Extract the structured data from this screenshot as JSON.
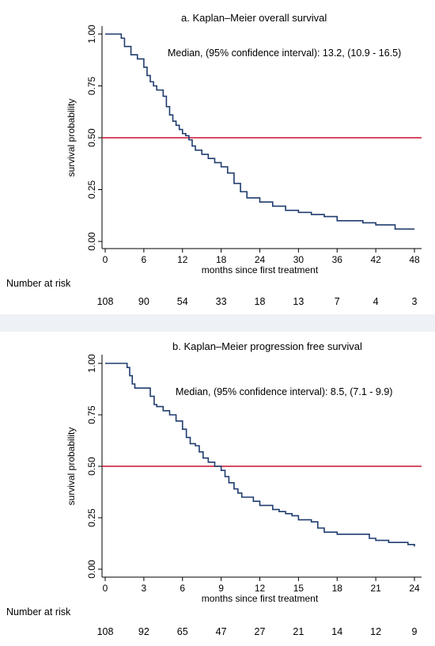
{
  "chart_data": [
    {
      "type": "line",
      "title": "a.  Kaplan–Meier overall survival",
      "annotation": "Median, (95% confidence interval): 13.2, (10.9 - 16.5)",
      "xlabel": "months since first treatment",
      "ylabel": "survival probability",
      "xlim": [
        0,
        48
      ],
      "ylim": [
        0,
        1
      ],
      "xticks": [
        "0",
        "6",
        "12",
        "18",
        "24",
        "30",
        "36",
        "42",
        "48"
      ],
      "yticks": [
        "0.00",
        "0.25",
        "0.50",
        "0.75",
        "1.00"
      ],
      "reference_line": {
        "y": 0.5,
        "color": "#c8102e"
      },
      "line_color": "#1f3c6e",
      "risk_label": "Number at risk",
      "risk_values": [
        "108",
        "90",
        "54",
        "33",
        "18",
        "13",
        "7",
        "4",
        "3"
      ],
      "series": [
        {
          "x": [
            0,
            2.5,
            3,
            4,
            5,
            6,
            6.5,
            7,
            7.5,
            8,
            8.5,
            9,
            9.5,
            10,
            10.5,
            11,
            11.5,
            12,
            12.5,
            13,
            13.5,
            14,
            15,
            16,
            17,
            18,
            19,
            20,
            21,
            22,
            24,
            26,
            28,
            30,
            32,
            34,
            36,
            38,
            40,
            42,
            44,
            45,
            48
          ],
          "y": [
            1.0,
            0.98,
            0.94,
            0.9,
            0.88,
            0.84,
            0.8,
            0.77,
            0.75,
            0.73,
            0.73,
            0.7,
            0.65,
            0.61,
            0.58,
            0.56,
            0.54,
            0.52,
            0.51,
            0.49,
            0.46,
            0.44,
            0.42,
            0.4,
            0.38,
            0.36,
            0.33,
            0.28,
            0.24,
            0.21,
            0.19,
            0.17,
            0.15,
            0.14,
            0.13,
            0.12,
            0.1,
            0.1,
            0.09,
            0.08,
            0.08,
            0.06,
            0.06
          ]
        }
      ]
    },
    {
      "type": "line",
      "title": "b. Kaplan–Meier progression free survival",
      "annotation": "Median, (95% confidence interval): 8.5, (7.1 - 9.9)",
      "xlabel": "months since first treatment",
      "ylabel": "survival probability",
      "xlim": [
        0,
        24
      ],
      "ylim": [
        0,
        1
      ],
      "xticks": [
        "0",
        "3",
        "6",
        "9",
        "12",
        "15",
        "18",
        "21",
        "24"
      ],
      "yticks": [
        "0.00",
        "0.25",
        "0.50",
        "0.75",
        "1.00"
      ],
      "reference_line": {
        "y": 0.5,
        "color": "#c8102e"
      },
      "line_color": "#1f3c6e",
      "risk_label": "Number at risk",
      "risk_values": [
        "108",
        "92",
        "65",
        "47",
        "27",
        "21",
        "14",
        "12",
        "9"
      ],
      "series": [
        {
          "x": [
            0,
            1.7,
            1.9,
            2.1,
            2.3,
            3,
            3.5,
            3.8,
            4,
            4.5,
            5,
            5.5,
            6,
            6.3,
            6.6,
            7,
            7.3,
            7.6,
            8,
            8.5,
            9,
            9.3,
            9.6,
            10,
            10.3,
            10.6,
            11,
            11.5,
            12,
            12.5,
            13,
            13.5,
            14,
            14.5,
            15,
            15.5,
            16,
            16.5,
            17,
            18,
            19,
            20,
            20.5,
            21,
            22,
            23.5,
            24
          ],
          "y": [
            1.0,
            0.98,
            0.94,
            0.9,
            0.88,
            0.88,
            0.84,
            0.8,
            0.79,
            0.77,
            0.75,
            0.72,
            0.68,
            0.64,
            0.61,
            0.6,
            0.57,
            0.54,
            0.52,
            0.5,
            0.48,
            0.45,
            0.42,
            0.39,
            0.37,
            0.35,
            0.35,
            0.33,
            0.31,
            0.31,
            0.29,
            0.28,
            0.27,
            0.26,
            0.24,
            0.24,
            0.23,
            0.2,
            0.18,
            0.17,
            0.17,
            0.17,
            0.15,
            0.14,
            0.13,
            0.12,
            0.11
          ]
        }
      ]
    }
  ]
}
